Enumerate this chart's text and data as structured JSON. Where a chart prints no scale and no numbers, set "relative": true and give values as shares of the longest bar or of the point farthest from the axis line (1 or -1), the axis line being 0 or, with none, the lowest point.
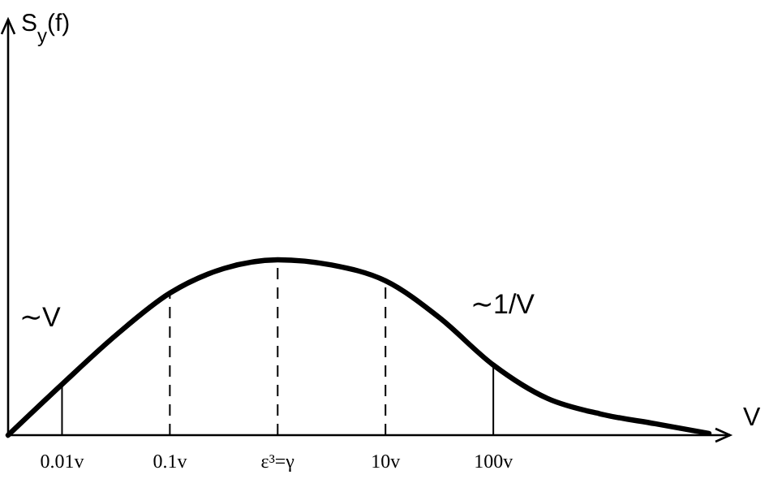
{
  "chart_data": {
    "type": "line",
    "relative": true,
    "xlabel": "V",
    "categories": [
      null,
      "0.01v",
      null,
      "0.1v",
      null,
      "ε³=γ",
      null,
      "10v",
      null,
      "100v",
      null,
      null,
      null,
      null
    ],
    "series": [
      {
        "color": "#000000",
        "values": [
          0,
          0.29,
          0.57,
          0.81,
          0.95,
          1.0,
          0.97,
          0.88,
          0.67,
          0.4,
          0.21,
          0.12,
          0.065,
          0.01
        ]
      }
    ],
    "ref_lines": [
      {
        "axis": "x",
        "value": "0.01v",
        "line_style": "solid"
      },
      {
        "axis": "x",
        "value": "0.1v",
        "line_style": "dashed"
      },
      {
        "axis": "x",
        "value": "ε³=γ",
        "line_style": "dashed"
      },
      {
        "axis": "x",
        "value": "10v",
        "line_style": "dashed"
      },
      {
        "axis": "x",
        "value": "100v",
        "line_style": "solid"
      }
    ],
    "annotations": [
      "∼V",
      "∼1/V",
      "S$_{y}$(f)"
    ]
  }
}
